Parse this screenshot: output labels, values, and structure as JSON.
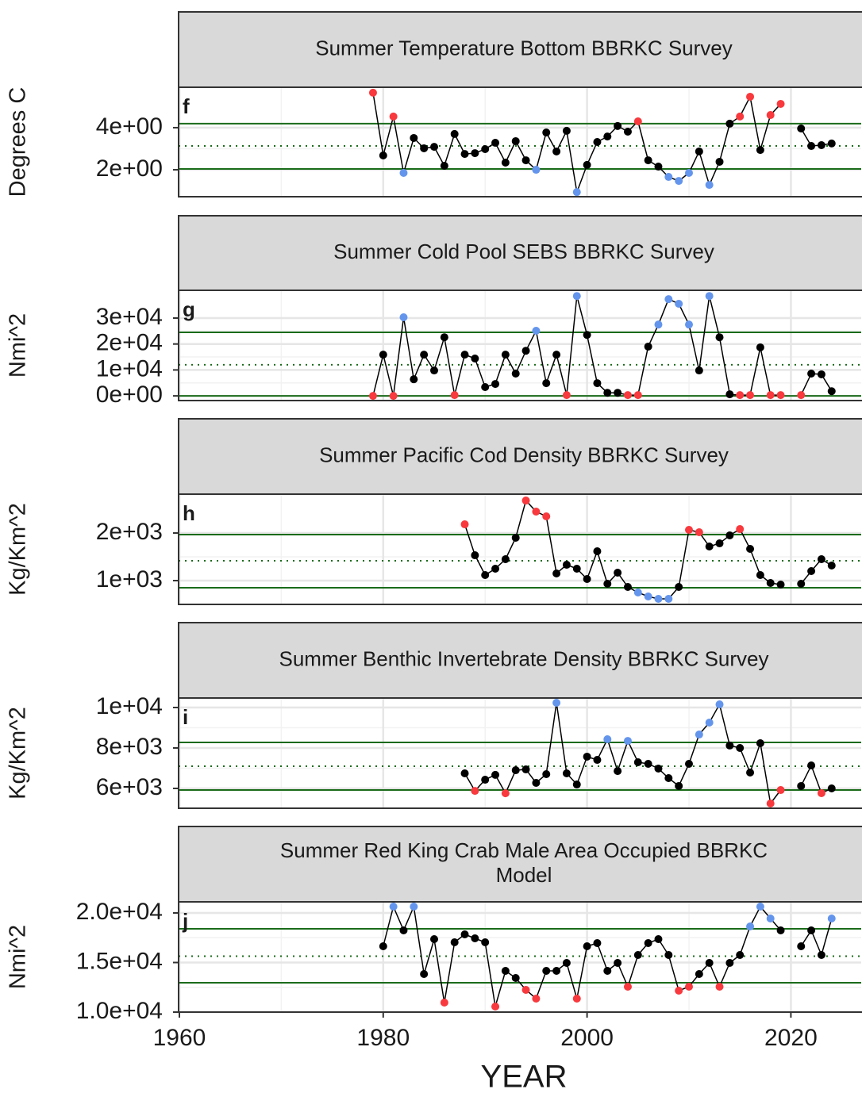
{
  "chart_data": [
    {
      "type": "line",
      "title": "Summer Temperature Bottom BBRKC Survey",
      "annotation": "f",
      "ylabel": "Degrees C",
      "xlim": [
        1960,
        2026.9
      ],
      "xticks": [
        1960,
        1980,
        2000,
        2020
      ],
      "ylim": [
        0.72,
        5.92
      ],
      "yticks": [
        {
          "value": 2,
          "label": "2e+00"
        },
        {
          "value": 4,
          "label": "4e+00"
        }
      ],
      "grid": true,
      "line_color": "#000000",
      "reference_color": "#1a6b1a",
      "reference_lines": {
        "solid": [
          4.19,
          2.04
        ],
        "dotted": [
          3.13
        ]
      },
      "x": [
        1979,
        1980,
        1981,
        1982,
        1983,
        1984,
        1985,
        1986,
        1987,
        1988,
        1989,
        1990,
        1991,
        1992,
        1993,
        1994,
        1995,
        1996,
        1997,
        1998,
        1999,
        2000,
        2001,
        2002,
        2003,
        2004,
        2005,
        2006,
        2007,
        2008,
        2009,
        2010,
        2011,
        2012,
        2013,
        2014,
        2015,
        2016,
        2017,
        2018,
        2019,
        2020,
        2021,
        2022,
        2023,
        2024
      ],
      "values": [
        5.66,
        2.68,
        4.53,
        1.85,
        3.51,
        3.02,
        3.09,
        2.19,
        3.7,
        2.75,
        2.79,
        2.98,
        3.28,
        2.34,
        3.36,
        2.45,
        2.0,
        3.77,
        2.87,
        3.85,
        0.94,
        2.23,
        3.32,
        3.58,
        4.08,
        3.81,
        4.3,
        2.45,
        2.15,
        1.66,
        1.47,
        1.85,
        2.87,
        1.28,
        2.38,
        4.19,
        4.53,
        5.47,
        2.94,
        4.6,
        5.13,
        null,
        3.96,
        3.13,
        3.17,
        3.25
      ],
      "point_colors": [
        "#f8393d",
        "#000000",
        "#f8393d",
        "#6495ed",
        "#000000",
        "#000000",
        "#000000",
        "#000000",
        "#000000",
        "#000000",
        "#000000",
        "#000000",
        "#000000",
        "#000000",
        "#000000",
        "#000000",
        "#6495ed",
        "#000000",
        "#000000",
        "#000000",
        "#6495ed",
        "#000000",
        "#000000",
        "#000000",
        "#000000",
        "#000000",
        "#f8393d",
        "#000000",
        "#000000",
        "#6495ed",
        "#6495ed",
        "#6495ed",
        "#000000",
        "#6495ed",
        "#000000",
        "#000000",
        "#f8393d",
        "#f8393d",
        "#000000",
        "#f8393d",
        "#f8393d",
        null,
        "#000000",
        "#000000",
        "#000000",
        "#000000"
      ]
    },
    {
      "type": "line",
      "title": "Summer Cold Pool SEBS BBRKC Survey",
      "annotation": "g",
      "ylabel": "Nmi^2",
      "xlim": [
        1960,
        2026.9
      ],
      "xticks": [
        1960,
        1980,
        2000,
        2020
      ],
      "ylim": [
        -1800,
        40700
      ],
      "yticks": [
        {
          "value": 0,
          "label": "0e+00"
        },
        {
          "value": 10000,
          "label": "1e+04"
        },
        {
          "value": 20000,
          "label": "2e+04"
        },
        {
          "value": 30000,
          "label": "3e+04"
        }
      ],
      "grid": true,
      "line_color": "#000000",
      "reference_color": "#1a6b1a",
      "reference_lines": {
        "solid": [
          24500,
          0
        ],
        "dotted": [
          12000
        ]
      },
      "x": [
        1979,
        1980,
        1981,
        1982,
        1983,
        1984,
        1985,
        1986,
        1987,
        1988,
        1989,
        1990,
        1991,
        1992,
        1993,
        1994,
        1995,
        1996,
        1997,
        1998,
        1999,
        2000,
        2001,
        2002,
        2003,
        2004,
        2005,
        2006,
        2007,
        2008,
        2009,
        2010,
        2011,
        2012,
        2013,
        2014,
        2015,
        2016,
        2017,
        2018,
        2019,
        2020,
        2021,
        2022,
        2023,
        2024
      ],
      "values": [
        0,
        15900,
        0,
        30300,
        6400,
        15900,
        9800,
        22600,
        300,
        15900,
        14400,
        3400,
        4600,
        15900,
        8600,
        17400,
        25100,
        4900,
        15900,
        300,
        38500,
        23500,
        4900,
        1200,
        1200,
        300,
        300,
        19000,
        27500,
        37300,
        35500,
        27500,
        9800,
        38500,
        22600,
        600,
        300,
        300,
        18700,
        300,
        300,
        null,
        300,
        8600,
        8300,
        1800
      ],
      "point_colors": [
        "#f8393d",
        "#000000",
        "#f8393d",
        "#6495ed",
        "#000000",
        "#000000",
        "#000000",
        "#000000",
        "#f8393d",
        "#000000",
        "#000000",
        "#000000",
        "#000000",
        "#000000",
        "#000000",
        "#000000",
        "#6495ed",
        "#000000",
        "#000000",
        "#f8393d",
        "#6495ed",
        "#000000",
        "#000000",
        "#000000",
        "#000000",
        "#f8393d",
        "#f8393d",
        "#000000",
        "#6495ed",
        "#6495ed",
        "#6495ed",
        "#6495ed",
        "#000000",
        "#6495ed",
        "#000000",
        "#000000",
        "#f8393d",
        "#f8393d",
        "#000000",
        "#f8393d",
        "#f8393d",
        null,
        "#f8393d",
        "#000000",
        "#000000",
        "#000000"
      ]
    },
    {
      "type": "line",
      "title": "Summer Pacific Cod Density BBRKC Survey",
      "annotation": "h",
      "ylabel": "Kg/Km^2",
      "xlim": [
        1960,
        2026.9
      ],
      "xticks": [
        1960,
        1980,
        2000,
        2020
      ],
      "ylim": [
        500,
        2817
      ],
      "yticks": [
        {
          "value": 1000,
          "label": "1e+03"
        },
        {
          "value": 2000,
          "label": "2e+03"
        }
      ],
      "grid": true,
      "line_color": "#000000",
      "reference_color": "#1a6b1a",
      "reference_lines": {
        "solid": [
          1967,
          850
        ],
        "dotted": [
          1417
        ]
      },
      "x": [
        1988,
        1989,
        1990,
        1991,
        1992,
        1993,
        1994,
        1995,
        1996,
        1997,
        1998,
        1999,
        2000,
        2001,
        2002,
        2003,
        2004,
        2005,
        2006,
        2007,
        2008,
        2009,
        2010,
        2011,
        2012,
        2013,
        2014,
        2015,
        2016,
        2017,
        2018,
        2019,
        2020,
        2021,
        2022,
        2023,
        2024
      ],
      "values": [
        2183,
        1533,
        1117,
        1250,
        1450,
        1900,
        2683,
        2450,
        2350,
        1150,
        1333,
        1250,
        1033,
        1617,
        933,
        1167,
        867,
        750,
        667,
        617,
        617,
        867,
        2067,
        2017,
        1717,
        1783,
        1950,
        2083,
        1667,
        1117,
        950,
        917,
        null,
        933,
        1200,
        1450,
        1317
      ],
      "point_colors": [
        "#f8393d",
        "#000000",
        "#000000",
        "#000000",
        "#000000",
        "#000000",
        "#f8393d",
        "#f8393d",
        "#f8393d",
        "#000000",
        "#000000",
        "#000000",
        "#000000",
        "#000000",
        "#000000",
        "#000000",
        "#000000",
        "#6495ed",
        "#6495ed",
        "#6495ed",
        "#6495ed",
        "#000000",
        "#f8393d",
        "#f8393d",
        "#000000",
        "#000000",
        "#000000",
        "#f8393d",
        "#000000",
        "#000000",
        "#000000",
        "#000000",
        null,
        "#000000",
        "#000000",
        "#000000",
        "#000000"
      ]
    },
    {
      "type": "line",
      "title": "Summer Benthic Invertebrate Density BBRKC Survey",
      "annotation": "i",
      "ylabel": "Kg/Km^2",
      "xlim": [
        1960,
        2026.9
      ],
      "xticks": [
        1960,
        1980,
        2000,
        2020
      ],
      "ylim": [
        5020,
        10470
      ],
      "yticks": [
        {
          "value": 6000,
          "label": "6e+03"
        },
        {
          "value": 8000,
          "label": "8e+03"
        },
        {
          "value": 10000,
          "label": "1e+04"
        }
      ],
      "grid": true,
      "line_color": "#000000",
      "reference_color": "#1a6b1a",
      "reference_lines": {
        "solid": [
          8275,
          5920
        ],
        "dotted": [
          7100
        ]
      },
      "x": [
        1988,
        1989,
        1990,
        1991,
        1992,
        1993,
        1994,
        1995,
        1996,
        1997,
        1998,
        1999,
        2000,
        2001,
        2002,
        2003,
        2004,
        2005,
        2006,
        2007,
        2008,
        2009,
        2010,
        2011,
        2012,
        2013,
        2014,
        2015,
        2016,
        2017,
        2018,
        2019,
        2020,
        2021,
        2022,
        2023,
        2024
      ],
      "values": [
        6745,
        5880,
        6430,
        6670,
        5760,
        6900,
        6940,
        6275,
        6705,
        10235,
        6745,
        6195,
        7570,
        7410,
        8430,
        6860,
        8350,
        7295,
        7215,
        6980,
        6510,
        6120,
        7215,
        8665,
        9255,
        10155,
        8120,
        8000,
        6785,
        8235,
        5255,
        5920,
        null,
        6120,
        7135,
        5765,
        6000
      ],
      "point_colors": [
        "#000000",
        "#f8393d",
        "#000000",
        "#000000",
        "#f8393d",
        "#000000",
        "#000000",
        "#000000",
        "#000000",
        "#6495ed",
        "#000000",
        "#000000",
        "#000000",
        "#000000",
        "#6495ed",
        "#000000",
        "#6495ed",
        "#000000",
        "#000000",
        "#000000",
        "#000000",
        "#000000",
        "#000000",
        "#6495ed",
        "#6495ed",
        "#6495ed",
        "#000000",
        "#000000",
        "#000000",
        "#000000",
        "#f8393d",
        "#f8393d",
        null,
        "#000000",
        "#000000",
        "#f8393d",
        "#000000"
      ]
    },
    {
      "type": "line",
      "title": [
        "Summer Red King Crab Male Area Occupied BBRKC",
        "Model"
      ],
      "annotation": "j",
      "ylabel": "Nmi^2",
      "xlabel": "YEAR",
      "xlim": [
        1960,
        2026.9
      ],
      "xticks": [
        1960,
        1980,
        2000,
        2020
      ],
      "ylim": [
        10000,
        21120
      ],
      "yticks": [
        {
          "value": 10000,
          "label": "1.0e+04"
        },
        {
          "value": 15000,
          "label": "1.5e+04"
        },
        {
          "value": 20000,
          "label": "2.0e+04"
        }
      ],
      "grid": true,
      "line_color": "#000000",
      "reference_color": "#1a6b1a",
      "reference_lines": {
        "solid": [
          18400,
          12960
        ],
        "dotted": [
          15640
        ]
      },
      "x": [
        1980,
        1981,
        1982,
        1983,
        1984,
        1985,
        1986,
        1987,
        1988,
        1989,
        1990,
        1991,
        1992,
        1993,
        1994,
        1995,
        1996,
        1997,
        1998,
        1999,
        2000,
        2001,
        2002,
        2003,
        2004,
        2005,
        2006,
        2007,
        2008,
        2009,
        2010,
        2011,
        2012,
        2013,
        2014,
        2015,
        2016,
        2017,
        2018,
        2019,
        2020,
        2021,
        2022,
        2023,
        2024
      ],
      "values": [
        16640,
        20640,
        18240,
        20640,
        13840,
        17360,
        10960,
        17040,
        17840,
        17440,
        17040,
        10560,
        14160,
        13440,
        12240,
        11360,
        14160,
        14160,
        14960,
        11360,
        16640,
        16960,
        14160,
        14960,
        12560,
        15760,
        16960,
        17360,
        15760,
        12160,
        12560,
        13840,
        14960,
        12560,
        14960,
        15760,
        18640,
        20640,
        19440,
        18240,
        null,
        16640,
        18240,
        15760,
        19440
      ],
      "point_colors": [
        "#000000",
        "#6495ed",
        "#000000",
        "#6495ed",
        "#000000",
        "#000000",
        "#f8393d",
        "#000000",
        "#000000",
        "#000000",
        "#000000",
        "#f8393d",
        "#000000",
        "#000000",
        "#f8393d",
        "#f8393d",
        "#000000",
        "#000000",
        "#000000",
        "#f8393d",
        "#000000",
        "#000000",
        "#000000",
        "#000000",
        "#f8393d",
        "#000000",
        "#000000",
        "#000000",
        "#000000",
        "#f8393d",
        "#f8393d",
        "#000000",
        "#000000",
        "#f8393d",
        "#000000",
        "#000000",
        "#6495ed",
        "#6495ed",
        "#6495ed",
        "#000000",
        null,
        "#000000",
        "#000000",
        "#000000",
        "#6495ed"
      ]
    }
  ]
}
